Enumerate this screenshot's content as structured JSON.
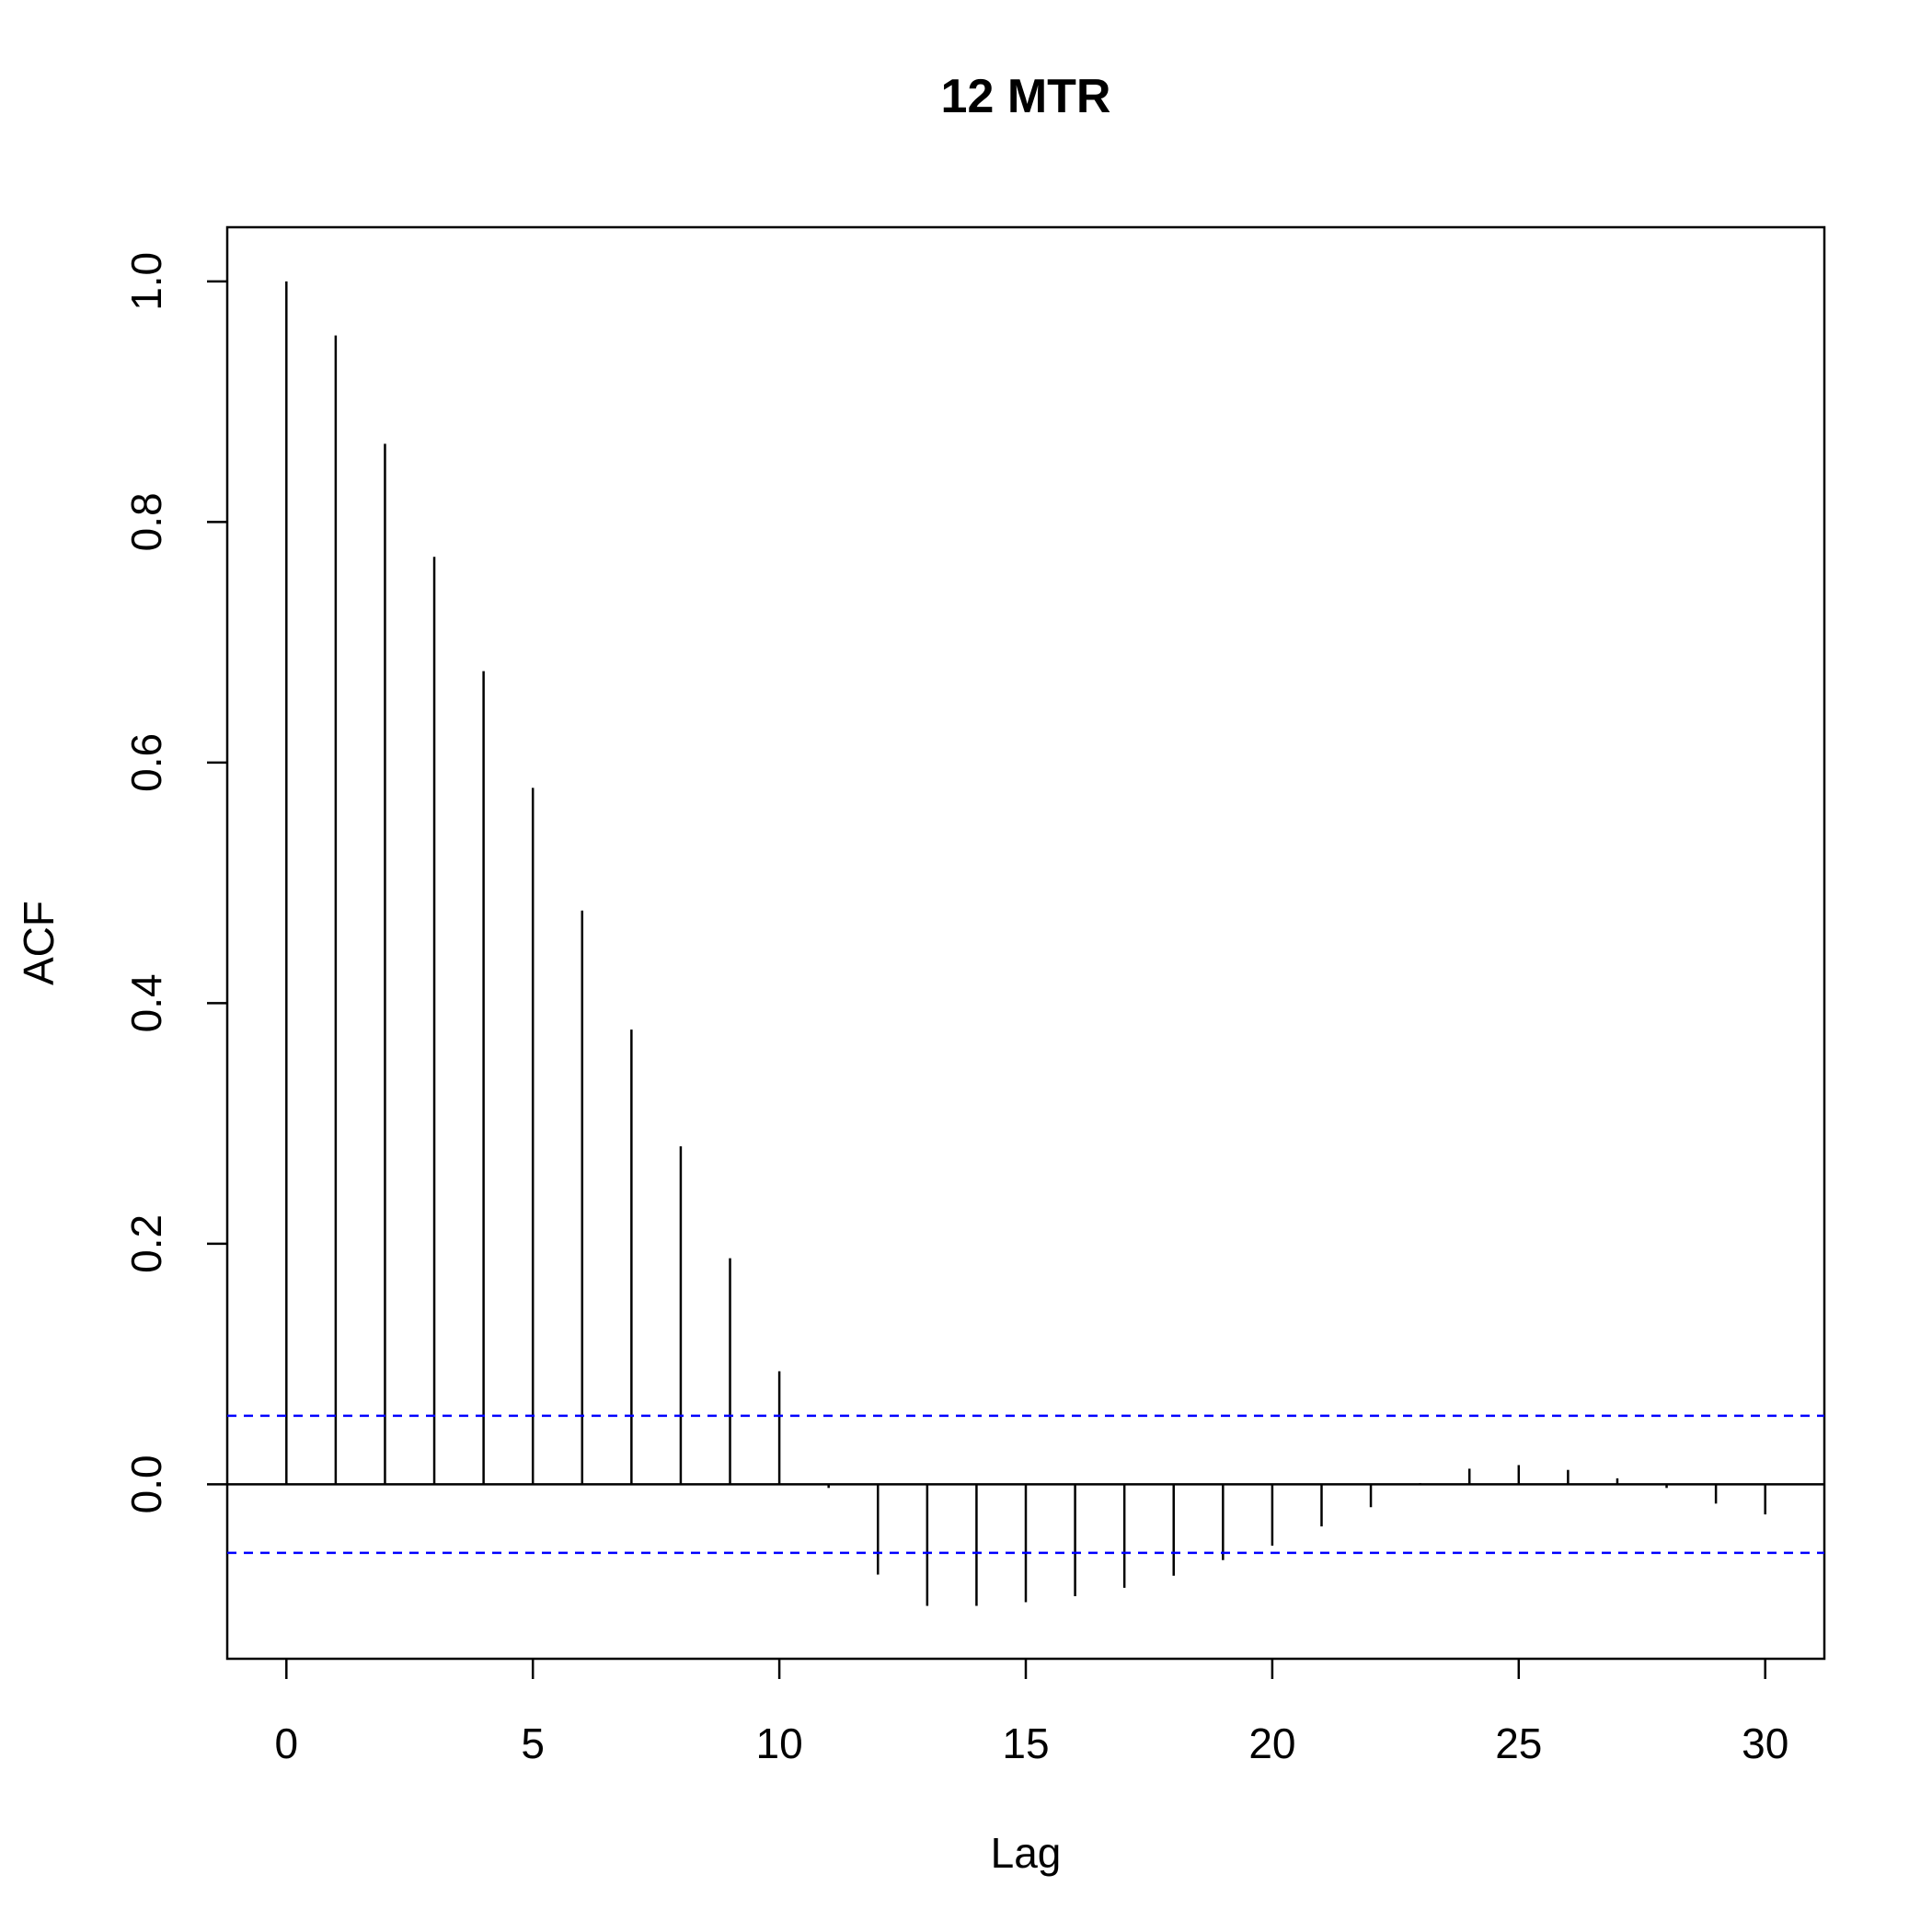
{
  "chart_data": {
    "type": "bar",
    "title": "12 MTR",
    "xlabel": "Lag",
    "ylabel": "ACF",
    "x": [
      0,
      1,
      2,
      3,
      4,
      5,
      6,
      7,
      8,
      9,
      10,
      11,
      12,
      13,
      14,
      15,
      16,
      17,
      18,
      19,
      20,
      21,
      22,
      23,
      24,
      25,
      26,
      27,
      28,
      29,
      30
    ],
    "values": [
      1.0,
      0.955,
      0.865,
      0.771,
      0.676,
      0.579,
      0.477,
      0.378,
      0.281,
      0.188,
      0.094,
      -0.003,
      -0.075,
      -0.101,
      -0.101,
      -0.098,
      -0.093,
      -0.086,
      -0.076,
      -0.063,
      -0.051,
      -0.035,
      -0.019,
      0.001,
      0.013,
      0.016,
      0.012,
      0.005,
      -0.003,
      -0.016,
      -0.025
    ],
    "confidence_limits": [
      0.057,
      -0.057
    ],
    "xlim": [
      -1.2,
      31.2
    ],
    "ylim": [
      -0.145,
      1.045
    ],
    "xticks": [
      0,
      5,
      10,
      15,
      20,
      25,
      30
    ],
    "xtick_labels": [
      "0",
      "5",
      "10",
      "15",
      "20",
      "25",
      "30"
    ],
    "yticks": [
      0.0,
      0.2,
      0.4,
      0.6,
      0.8,
      1.0
    ],
    "ytick_labels": [
      "0.0",
      "0.2",
      "0.4",
      "0.6",
      "0.8",
      "1.0"
    ],
    "grid": false,
    "colors": {
      "bars": "#000000",
      "confidence": "#0000ff",
      "axes": "#000000"
    }
  }
}
